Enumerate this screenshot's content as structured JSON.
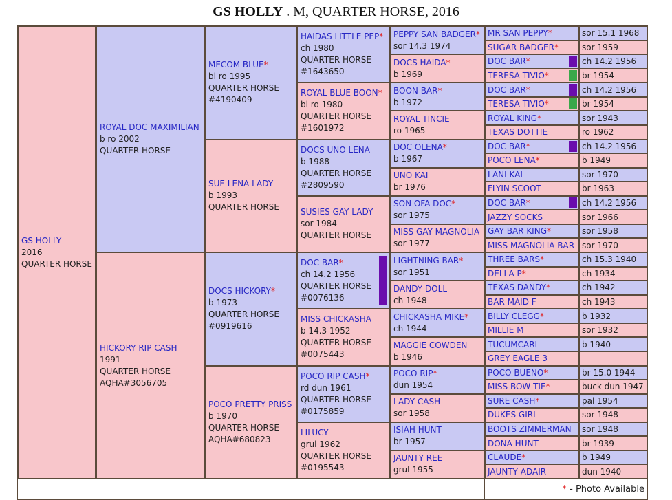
{
  "title": {
    "name": "GS HOLLY",
    "rest": " . M, QUARTER HORSE, 2016"
  },
  "footer": {
    "mark": "*",
    "text": " - Photo Available"
  },
  "columns": [
    [
      {
        "name": "GS HOLLY",
        "lines": [
          "2016",
          "QUARTER HORSE"
        ],
        "photo": false
      }
    ],
    [
      {
        "name": "ROYAL DOC MAXIMILIAN",
        "lines": [
          "b ro 2002",
          "QUARTER HORSE"
        ],
        "photo": false
      },
      {
        "name": "HICKORY RIP CASH",
        "lines": [
          "1991",
          "QUARTER HORSE",
          "AQHA#3056705"
        ],
        "photo": false
      }
    ],
    [
      {
        "name": "MECOM BLUE",
        "lines": [
          "bl ro 1995",
          "QUARTER HORSE",
          "#4190409"
        ],
        "photo": true
      },
      {
        "name": "SUE LENA LADY",
        "lines": [
          "b 1993",
          "QUARTER HORSE"
        ],
        "photo": false
      },
      {
        "name": "DOCS HICKORY",
        "lines": [
          "b 1973",
          "QUARTER HORSE",
          "#0919616"
        ],
        "photo": true
      },
      {
        "name": "POCO PRETTY PRISS",
        "lines": [
          "b 1970",
          "QUARTER HORSE",
          "AQHA#680823"
        ],
        "photo": false
      }
    ],
    [
      {
        "name": "HAIDAS LITTLE PEP",
        "lines": [
          "ch 1980",
          "QUARTER HORSE",
          "#1643650"
        ],
        "photo": true
      },
      {
        "name": "ROYAL BLUE BOON",
        "lines": [
          "bl ro 1980",
          "QUARTER HORSE",
          "#1601972"
        ],
        "photo": true
      },
      {
        "name": "DOCS UNO LENA",
        "lines": [
          "b 1988",
          "QUARTER HORSE",
          "#2809590"
        ],
        "photo": false
      },
      {
        "name": "SUSIES GAY LADY",
        "lines": [
          "sor 1984",
          "QUARTER HORSE"
        ],
        "photo": false
      },
      {
        "name": "DOC BAR",
        "lines": [
          "ch 14.2 1956",
          "QUARTER HORSE",
          "#0076136"
        ],
        "photo": true,
        "marker": "#6a0dad"
      },
      {
        "name": "MISS CHICKASHA",
        "lines": [
          "b 14.3 1952",
          "QUARTER HORSE",
          "#0075443"
        ],
        "photo": false
      },
      {
        "name": "POCO RIP CASH",
        "lines": [
          "rd dun 1961",
          "QUARTER HORSE",
          "#0175859"
        ],
        "photo": true
      },
      {
        "name": "LILUCY",
        "lines": [
          "grul 1962",
          "QUARTER HORSE",
          "#0195543"
        ],
        "photo": false
      }
    ],
    [
      {
        "name": "PEPPY SAN BADGER",
        "lines": [
          "sor 14.3 1974"
        ],
        "photo": true
      },
      {
        "name": "DOCS HAIDA",
        "lines": [
          "b 1969"
        ],
        "photo": true
      },
      {
        "name": "BOON BAR",
        "lines": [
          "b 1972"
        ],
        "photo": true
      },
      {
        "name": "ROYAL TINCIE",
        "lines": [
          "ro 1965"
        ],
        "photo": false
      },
      {
        "name": "DOC OLENA",
        "lines": [
          "b 1967"
        ],
        "photo": true
      },
      {
        "name": "UNO KAI",
        "lines": [
          "br 1976"
        ],
        "photo": false
      },
      {
        "name": "SON OFA DOC",
        "lines": [
          "sor 1975"
        ],
        "photo": true
      },
      {
        "name": "MISS GAY MAGNOLIA",
        "lines": [
          "sor 1977"
        ],
        "photo": false
      },
      {
        "name": "LIGHTNING BAR",
        "lines": [
          "sor 1951"
        ],
        "photo": true
      },
      {
        "name": "DANDY DOLL",
        "lines": [
          "ch 1948"
        ],
        "photo": false
      },
      {
        "name": "CHICKASHA MIKE",
        "lines": [
          "ch 1944"
        ],
        "photo": true
      },
      {
        "name": "MAGGIE COWDEN",
        "lines": [
          "b 1946"
        ],
        "photo": false
      },
      {
        "name": "POCO RIP",
        "lines": [
          "dun 1954"
        ],
        "photo": true
      },
      {
        "name": "LADY CASH",
        "lines": [
          "sor 1958"
        ],
        "photo": false
      },
      {
        "name": "ISIAH HUNT",
        "lines": [
          "br 1957"
        ],
        "photo": false
      },
      {
        "name": "JAUNTY REE",
        "lines": [
          "grul 1955"
        ],
        "photo": false
      }
    ]
  ],
  "gen6": [
    {
      "name": "MR SAN PEPPY",
      "info": "sor 15.1 1968",
      "photo": true
    },
    {
      "name": "SUGAR BADGER",
      "info": "sor 1959",
      "photo": true
    },
    {
      "name": "DOC BAR",
      "info": "ch 14.2 1956",
      "photo": true,
      "marker": "#6a0dad"
    },
    {
      "name": "TERESA TIVIO",
      "info": "br 1954",
      "photo": true,
      "marker": "#3aa84a"
    },
    {
      "name": "DOC BAR",
      "info": "ch 14.2 1956",
      "photo": true,
      "marker": "#6a0dad"
    },
    {
      "name": "TERESA TIVIO",
      "info": "br 1954",
      "photo": true,
      "marker": "#3aa84a"
    },
    {
      "name": "ROYAL KING",
      "info": "sor 1943",
      "photo": true
    },
    {
      "name": "TEXAS DOTTIE",
      "info": "ro 1962",
      "photo": false
    },
    {
      "name": "DOC BAR",
      "info": "ch 14.2 1956",
      "photo": true,
      "marker": "#6a0dad"
    },
    {
      "name": "POCO LENA",
      "info": "b 1949",
      "photo": true
    },
    {
      "name": "LANI KAI",
      "info": "sor 1970",
      "photo": false
    },
    {
      "name": "FLYIN SCOOT",
      "info": "br 1963",
      "photo": false
    },
    {
      "name": "DOC BAR",
      "info": "ch 14.2 1956",
      "photo": true,
      "marker": "#6a0dad"
    },
    {
      "name": "JAZZY SOCKS",
      "info": "sor 1966",
      "photo": false
    },
    {
      "name": "GAY BAR KING",
      "info": "sor 1958",
      "photo": true
    },
    {
      "name": "MISS MAGNOLIA BAR",
      "info": "sor 1970",
      "photo": false
    },
    {
      "name": "THREE BARS",
      "info": "ch 15.3 1940",
      "photo": true
    },
    {
      "name": "DELLA P",
      "info": "ch 1934",
      "photo": true
    },
    {
      "name": "TEXAS DANDY",
      "info": "ch 1942",
      "photo": true
    },
    {
      "name": "BAR MAID F",
      "info": "ch 1943",
      "photo": false
    },
    {
      "name": "BILLY CLEGG",
      "info": "b 1932",
      "photo": true
    },
    {
      "name": "MILLIE M",
      "info": "sor 1932",
      "photo": false
    },
    {
      "name": "TUCUMCARI",
      "info": "b 1940",
      "photo": false
    },
    {
      "name": "GREY EAGLE 3",
      "info": null,
      "photo": false
    },
    {
      "name": "POCO BUENO",
      "info": "br 15.0 1944",
      "photo": true
    },
    {
      "name": "MISS BOW TIE",
      "info": "buck dun 1947",
      "photo": true
    },
    {
      "name": "SURE CASH",
      "info": "pal 1954",
      "photo": true
    },
    {
      "name": "DUKES GIRL",
      "info": "sor 1948",
      "photo": false
    },
    {
      "name": "BOOTS ZIMMERMAN",
      "info": "sor 1948",
      "photo": false
    },
    {
      "name": "DONA HUNT",
      "info": "br 1939",
      "photo": false
    },
    {
      "name": "CLAUDE",
      "info": "b 1949",
      "photo": true
    },
    {
      "name": "JAUNTY ADAIR",
      "info": "dun 1940",
      "photo": false
    }
  ]
}
